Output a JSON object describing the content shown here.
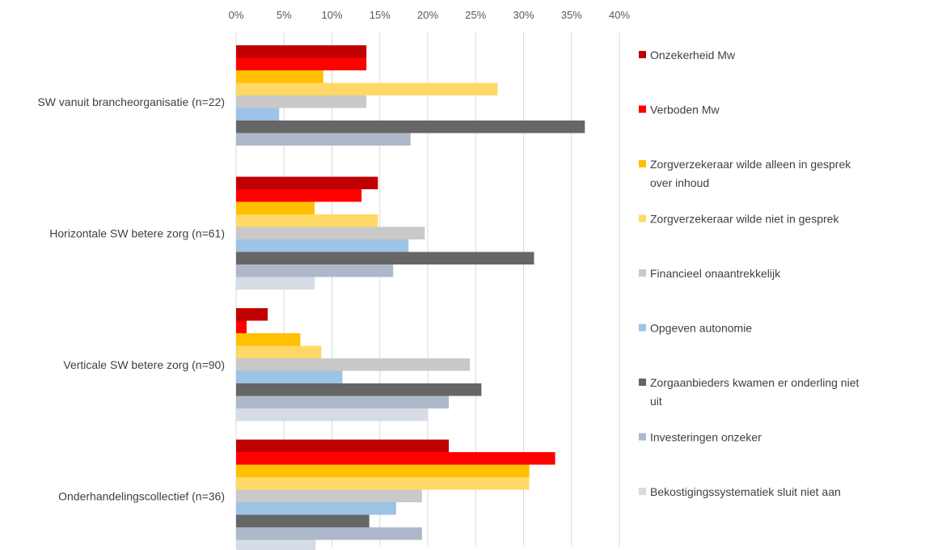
{
  "chart_data": {
    "type": "bar",
    "orientation": "horizontal",
    "title": "",
    "xlabel": "",
    "ylabel": "",
    "xlim": [
      0,
      40
    ],
    "x_ticks": [
      "0%",
      "5%",
      "10%",
      "15%",
      "20%",
      "25%",
      "30%",
      "35%",
      "40%"
    ],
    "x_axis_position": "top",
    "grid": true,
    "legend_position": "right",
    "categories": [
      "SW vanuit brancheorganisatie (n=22)",
      "Horizontale SW betere zorg (n=61)",
      "Verticale SW betere zorg (n=90)",
      "Onderhandelingscollectief (n=36)"
    ],
    "series": [
      {
        "name": "Onzekerheid Mw",
        "color": "#C00000",
        "values": [
          13.6,
          14.8,
          3.3,
          22.2
        ]
      },
      {
        "name": "Verboden Mw",
        "color": "#FF0000",
        "values": [
          13.6,
          13.1,
          1.1,
          33.3
        ]
      },
      {
        "name": "Zorgverzekeraar wilde alleen in gesprek over inhoud",
        "color": "#FFC000",
        "values": [
          9.1,
          8.2,
          6.7,
          30.6
        ]
      },
      {
        "name": "Zorgverzekeraar wilde niet in gesprek",
        "color": "#FFD966",
        "values": [
          27.3,
          14.8,
          8.9,
          30.6
        ]
      },
      {
        "name": "Financieel onaantrekkelijk",
        "color": "#C9C9C9",
        "values": [
          13.6,
          19.7,
          24.4,
          19.4
        ]
      },
      {
        "name": "Opgeven autonomie",
        "color": "#9DC3E6",
        "values": [
          4.5,
          18.0,
          11.1,
          16.7
        ]
      },
      {
        "name": "Zorgaanbieders kwamen er onderling niet uit",
        "color": "#666666",
        "values": [
          36.4,
          31.1,
          25.6,
          13.9
        ]
      },
      {
        "name": "Investeringen onzeker",
        "color": "#ADB9CA",
        "values": [
          18.2,
          16.4,
          22.2,
          19.4
        ]
      },
      {
        "name": "Bekostigingssystematiek sluit niet aan",
        "color": "#D6DCE5",
        "values": [
          0,
          8.2,
          20.0,
          8.3
        ]
      }
    ]
  }
}
